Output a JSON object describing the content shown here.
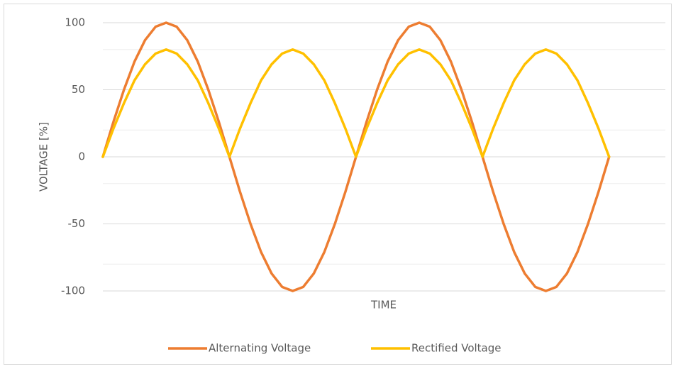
{
  "chart_data": {
    "type": "line",
    "x_label": "TIME",
    "y_label": "VOLTAGE [%]",
    "x": [
      0,
      15,
      30,
      45,
      60,
      75,
      90,
      105,
      120,
      135,
      150,
      165,
      180,
      195,
      210,
      225,
      240,
      255,
      270,
      285,
      300,
      315,
      330,
      345,
      360,
      375,
      390,
      405,
      420,
      435,
      450,
      465,
      480,
      495,
      510,
      525,
      540,
      555,
      570,
      585,
      600,
      615,
      630,
      645,
      660,
      675,
      690,
      705,
      720
    ],
    "xlim": [
      0,
      800
    ],
    "ylim": [
      -100,
      100
    ],
    "yticks": [
      -100,
      -50,
      0,
      50,
      100
    ],
    "minor_yticks": [
      -80,
      -20,
      20,
      80
    ],
    "grid": true,
    "legend": "bottom",
    "series": [
      {
        "name": "Alternating Voltage",
        "color": "#ED7D31",
        "values": [
          0,
          26,
          50,
          71,
          87,
          97,
          100,
          97,
          87,
          71,
          50,
          26,
          0,
          -26,
          -50,
          -71,
          -87,
          -97,
          -100,
          -97,
          -87,
          -71,
          -50,
          -26,
          0,
          26,
          50,
          71,
          87,
          97,
          100,
          97,
          87,
          71,
          50,
          26,
          0,
          -26,
          -50,
          -71,
          -87,
          -97,
          -100,
          -97,
          -87,
          -71,
          -50,
          -26,
          0
        ]
      },
      {
        "name": "Rectified Voltage",
        "color": "#FFC000",
        "values": [
          0,
          21,
          40,
          57,
          69,
          77,
          80,
          77,
          69,
          57,
          40,
          21,
          0,
          21,
          40,
          57,
          69,
          77,
          80,
          77,
          69,
          57,
          40,
          21,
          0,
          21,
          40,
          57,
          69,
          77,
          80,
          77,
          69,
          57,
          40,
          21,
          0,
          21,
          40,
          57,
          69,
          77,
          80,
          77,
          69,
          57,
          40,
          21,
          0
        ]
      }
    ]
  }
}
